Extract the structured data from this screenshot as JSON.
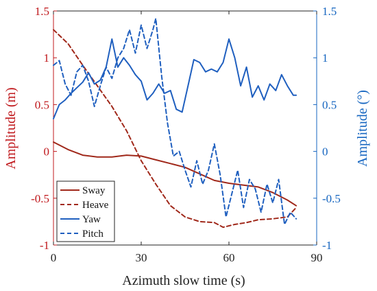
{
  "chart_data": {
    "type": "line",
    "xlabel": "Azimuth slow time (s)",
    "ylabel_left": "Amplitude (m)",
    "ylabel_right": "Amplitude (°)",
    "xlim": [
      0,
      90
    ],
    "ylim_left": [
      -1,
      1.5
    ],
    "ylim_right": [
      -1,
      1.5
    ],
    "xticks": [
      "0",
      "30",
      "60",
      "90"
    ],
    "yticks_left": [
      "-1",
      "-0.5",
      "0",
      "0.5",
      "1",
      "1.5"
    ],
    "yticks_right": [
      "-1",
      "-0.5",
      "0",
      "0.5",
      "1",
      "1.5"
    ],
    "grid": false,
    "legend_position": "bottom-left",
    "colors": {
      "left_axis": "#c0181c",
      "right_axis": "#1565c0",
      "x_axis": "#222222"
    },
    "series": [
      {
        "name": "Sway",
        "axis": "left",
        "style": "solid",
        "color": "#a0281a",
        "x": [
          0,
          5,
          10,
          15,
          20,
          25,
          30,
          35,
          40,
          45,
          50,
          55,
          60,
          65,
          70,
          75,
          80,
          83
        ],
        "y": [
          0.1,
          0.02,
          -0.04,
          -0.06,
          -0.06,
          -0.04,
          -0.05,
          -0.09,
          -0.13,
          -0.17,
          -0.24,
          -0.31,
          -0.34,
          -0.36,
          -0.38,
          -0.44,
          -0.52,
          -0.58
        ]
      },
      {
        "name": "Heave",
        "axis": "left",
        "style": "dashed",
        "color": "#a0281a",
        "x": [
          0,
          5,
          10,
          15,
          20,
          25,
          30,
          35,
          40,
          45,
          50,
          55,
          58,
          62,
          66,
          70,
          75,
          80,
          83
        ],
        "y": [
          1.3,
          1.15,
          0.92,
          0.7,
          0.48,
          0.22,
          -0.1,
          -0.35,
          -0.58,
          -0.7,
          -0.75,
          -0.76,
          -0.81,
          -0.78,
          -0.76,
          -0.73,
          -0.72,
          -0.7,
          -0.6
        ]
      },
      {
        "name": "Yaw",
        "axis": "right",
        "style": "solid",
        "color": "#1f5fbf",
        "x": [
          0,
          2,
          4,
          6,
          8,
          10,
          12,
          14,
          16,
          18,
          20,
          22,
          24,
          26,
          28,
          30,
          32,
          34,
          36,
          38,
          40,
          42,
          44,
          46,
          48,
          50,
          52,
          54,
          56,
          58,
          60,
          62,
          64,
          66,
          68,
          70,
          72,
          74,
          76,
          78,
          80,
          82,
          83
        ],
        "y": [
          0.35,
          0.5,
          0.55,
          0.62,
          0.68,
          0.74,
          0.84,
          0.72,
          0.76,
          0.9,
          1.2,
          0.9,
          1.0,
          0.92,
          0.82,
          0.75,
          0.55,
          0.62,
          0.72,
          0.62,
          0.65,
          0.45,
          0.42,
          0.7,
          0.98,
          0.95,
          0.85,
          0.88,
          0.85,
          0.95,
          1.2,
          1.0,
          0.7,
          0.9,
          0.58,
          0.7,
          0.55,
          0.72,
          0.65,
          0.82,
          0.7,
          0.6,
          0.6
        ]
      },
      {
        "name": "Pitch",
        "axis": "right",
        "style": "dashed",
        "color": "#1f5fbf",
        "x": [
          0,
          2,
          4,
          6,
          8,
          10,
          12,
          14,
          16,
          18,
          20,
          22,
          24,
          26,
          28,
          30,
          32,
          34,
          35,
          37,
          39,
          41,
          43,
          45,
          47,
          49,
          51,
          53,
          55,
          57,
          59,
          61,
          63,
          65,
          67,
          69,
          71,
          73,
          75,
          77,
          79,
          81,
          83
        ],
        "y": [
          0.92,
          0.97,
          0.72,
          0.6,
          0.85,
          0.92,
          0.75,
          0.48,
          0.7,
          0.9,
          0.78,
          1.0,
          1.1,
          1.3,
          1.05,
          1.35,
          1.1,
          1.3,
          1.42,
          0.8,
          0.3,
          -0.05,
          0.0,
          -0.2,
          -0.38,
          -0.1,
          -0.35,
          -0.2,
          0.08,
          -0.25,
          -0.7,
          -0.45,
          -0.2,
          -0.6,
          -0.3,
          -0.4,
          -0.65,
          -0.35,
          -0.55,
          -0.3,
          -0.78,
          -0.65,
          -0.72
        ]
      }
    ]
  }
}
